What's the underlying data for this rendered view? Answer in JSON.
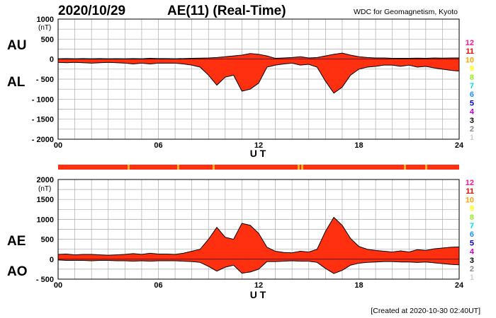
{
  "header": {
    "date": "2020/10/29",
    "title": "AE(11) (Real-Time)",
    "source": "WDC for Geomagnetism, Kyoto"
  },
  "footer": {
    "created": "[Created at 2020-10-30 02:40UT]"
  },
  "colors": {
    "fill": "#ff3010",
    "edge": "#000000",
    "grid": "#aaaaaa",
    "station_bar": "#ff3010",
    "highlight": "#ffb020"
  },
  "legend": {
    "numbers": [
      "12",
      "11",
      "10",
      "9",
      "8",
      "7",
      "6",
      "5",
      "4",
      "3",
      "2",
      "1"
    ],
    "colors": [
      "#ff1493",
      "#ff0000",
      "#ffa500",
      "#ffff00",
      "#90ee20",
      "#00dddd",
      "#1e90ff",
      "#0000cd",
      "#cc00cc",
      "#000000",
      "#888888",
      "#cccccc"
    ]
  },
  "chart_data": [
    {
      "type": "area",
      "name": "top-panel",
      "unit_label": "(nT)",
      "xlabel": "U T",
      "upper_label": "AU",
      "lower_label": "AL",
      "x_ticks": [
        "00",
        "06",
        "12",
        "18",
        "24"
      ],
      "xlim": [
        0,
        24
      ],
      "ylim": [
        -2000,
        1000
      ],
      "y_ticks": [
        "1000",
        "500",
        "0",
        "- 500",
        "- 1000",
        "- 1500",
        "- 2000"
      ],
      "y_tick_values": [
        1000,
        500,
        0,
        -500,
        -1000,
        -1500,
        -2000
      ],
      "grid": true,
      "x": [
        0,
        0.5,
        1,
        1.5,
        2,
        2.5,
        3,
        3.5,
        4,
        4.5,
        5,
        5.5,
        6,
        6.5,
        7,
        7.5,
        8,
        8.5,
        9,
        9.5,
        10,
        10.5,
        11,
        11.5,
        12,
        12.5,
        13,
        13.5,
        14,
        14.5,
        15,
        15.5,
        16,
        16.5,
        17,
        17.5,
        18,
        18.5,
        19,
        19.5,
        20,
        20.5,
        21,
        21.5,
        22,
        22.5,
        23,
        23.5,
        24
      ],
      "series": [
        {
          "name": "AU",
          "values": [
            10,
            15,
            10,
            15,
            10,
            15,
            10,
            12,
            10,
            15,
            10,
            20,
            15,
            15,
            10,
            15,
            20,
            25,
            30,
            40,
            60,
            80,
            100,
            140,
            120,
            80,
            20,
            30,
            40,
            60,
            30,
            40,
            80,
            120,
            150,
            100,
            60,
            40,
            30,
            30,
            20,
            20,
            20,
            25,
            20,
            30,
            25,
            30,
            30
          ]
        },
        {
          "name": "AL",
          "values": [
            -80,
            -90,
            -80,
            -90,
            -100,
            -90,
            -80,
            -90,
            -100,
            -120,
            -100,
            -120,
            -100,
            -100,
            -100,
            -120,
            -150,
            -200,
            -400,
            -650,
            -450,
            -400,
            -800,
            -750,
            -600,
            -200,
            -150,
            -120,
            -100,
            -150,
            -130,
            -200,
            -550,
            -850,
            -700,
            -400,
            -250,
            -200,
            -180,
            -150,
            -150,
            -180,
            -150,
            -200,
            -180,
            -220,
            -250,
            -280,
            -300
          ]
        }
      ]
    },
    {
      "type": "area",
      "name": "bottom-panel",
      "unit_label": "(nT)",
      "xlabel": "U T",
      "upper_label": "AE",
      "lower_label": "AO",
      "x_ticks": [
        "00",
        "06",
        "12",
        "18",
        "24"
      ],
      "xlim": [
        0,
        24
      ],
      "ylim": [
        -500,
        2000
      ],
      "y_ticks": [
        "2000",
        "1500",
        "1000",
        "500",
        "0",
        "- 500"
      ],
      "y_tick_values": [
        2000,
        1500,
        1000,
        500,
        0,
        -500
      ],
      "grid": true,
      "x": [
        0,
        0.5,
        1,
        1.5,
        2,
        2.5,
        3,
        3.5,
        4,
        4.5,
        5,
        5.5,
        6,
        6.5,
        7,
        7.5,
        8,
        8.5,
        9,
        9.5,
        10,
        10.5,
        11,
        11.5,
        12,
        12.5,
        13,
        13.5,
        14,
        14.5,
        15,
        15.5,
        16,
        16.5,
        17,
        17.5,
        18,
        18.5,
        19,
        19.5,
        20,
        20.5,
        21,
        21.5,
        22,
        22.5,
        23,
        23.5,
        24
      ],
      "series": [
        {
          "name": "AE",
          "values": [
            120,
            130,
            110,
            120,
            120,
            110,
            100,
            110,
            120,
            140,
            120,
            150,
            130,
            130,
            120,
            150,
            200,
            250,
            500,
            800,
            550,
            500,
            900,
            850,
            650,
            300,
            200,
            170,
            160,
            200,
            180,
            250,
            700,
            1050,
            850,
            520,
            320,
            250,
            220,
            200,
            180,
            210,
            180,
            240,
            220,
            260,
            280,
            300,
            310
          ]
        },
        {
          "name": "AO",
          "values": [
            -20,
            -30,
            -30,
            -30,
            -40,
            -30,
            -30,
            -40,
            -40,
            -50,
            -40,
            -50,
            -40,
            -40,
            -40,
            -50,
            -60,
            -80,
            -180,
            -300,
            -200,
            -150,
            -350,
            -320,
            -250,
            -60,
            -60,
            -50,
            -40,
            -50,
            -50,
            -80,
            -230,
            -360,
            -280,
            -150,
            -100,
            -80,
            -70,
            -60,
            -60,
            -70,
            -70,
            -80,
            -70,
            -90,
            -110,
            -130,
            -140
          ]
        }
      ]
    }
  ]
}
